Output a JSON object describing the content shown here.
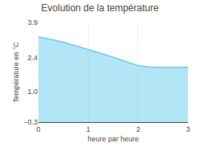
{
  "chart_data": {
    "type": "area",
    "title": "Evolution de la température",
    "xlabel": "heure par heure",
    "ylabel": "Température en °C",
    "x": [
      0,
      0.1,
      0.2,
      0.3,
      0.4,
      0.5,
      0.6,
      0.7,
      0.8,
      0.9,
      1.0,
      1.1,
      1.2,
      1.3,
      1.4,
      1.5,
      1.6,
      1.7,
      1.8,
      1.9,
      2.0,
      2.01,
      2.1,
      2.2,
      2.3,
      2.4,
      2.5,
      2.6,
      2.7,
      2.8,
      2.9,
      3.0
    ],
    "values": [
      3.3,
      3.26,
      3.22,
      3.17,
      3.12,
      3.07,
      3.01,
      2.95,
      2.88,
      2.83,
      2.77,
      2.7,
      2.64,
      2.57,
      2.5,
      2.43,
      2.36,
      2.28,
      2.2,
      2.14,
      2.08,
      2.08,
      2.05,
      2.03,
      2.02,
      2.01,
      2.01,
      2.01,
      2.01,
      2.01,
      2.01,
      2.01
    ],
    "color": "#66ccee",
    "xlim": [
      0,
      3
    ],
    "xticks": [
      0,
      1,
      2,
      3
    ],
    "ylim": [
      -0.3,
      3.9
    ],
    "yticks": [
      {
        "value": -0.3,
        "label": "−0.3"
      },
      {
        "value": 1.0,
        "label": "1.0"
      },
      {
        "value": 2.4,
        "label": "2.4"
      },
      {
        "value": 3.9,
        "label": "3.9"
      }
    ],
    "grid": "x"
  }
}
